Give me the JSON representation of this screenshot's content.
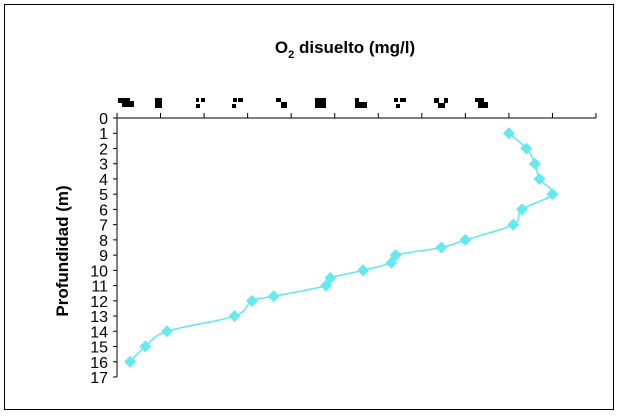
{
  "chart_data": {
    "type": "line",
    "title": "O2 disuelto (mg/l)",
    "title_parts": {
      "main": "O",
      "subscript": "2",
      "rest": " disuelto (mg/l)"
    },
    "ylabel": "Profundidad (m)",
    "xlabel": "",
    "x_axis_position": "top",
    "x_tick_labels_legible": false,
    "y_inverted": true,
    "ylim": [
      0,
      17
    ],
    "y_ticks": [
      "0",
      "1",
      "2",
      "3",
      "4",
      "5",
      "6",
      "7",
      "8",
      "9",
      "10",
      "11",
      "12",
      "13",
      "14",
      "15",
      "16",
      "17"
    ],
    "xlim": [
      0,
      11
    ],
    "grid": false,
    "legend": "none",
    "marker": "diamond",
    "color": "#66E8F0",
    "series": [
      {
        "points": [
          {
            "x": 9.0,
            "y": 1
          },
          {
            "x": 9.4,
            "y": 2
          },
          {
            "x": 9.6,
            "y": 3
          },
          {
            "x": 9.7,
            "y": 4
          },
          {
            "x": 10.0,
            "y": 5
          },
          {
            "x": 9.3,
            "y": 6
          },
          {
            "x": 9.1,
            "y": 7
          },
          {
            "x": 8.0,
            "y": 8
          },
          {
            "x": 7.45,
            "y": 8.5
          },
          {
            "x": 6.4,
            "y": 9
          },
          {
            "x": 6.3,
            "y": 9.5
          },
          {
            "x": 5.65,
            "y": 10
          },
          {
            "x": 4.9,
            "y": 10.5
          },
          {
            "x": 4.8,
            "y": 11
          },
          {
            "x": 3.6,
            "y": 11.7
          },
          {
            "x": 3.1,
            "y": 12
          },
          {
            "x": 2.7,
            "y": 13
          },
          {
            "x": 1.15,
            "y": 14
          },
          {
            "x": 0.65,
            "y": 15
          },
          {
            "x": 0.3,
            "y": 16
          }
        ]
      }
    ]
  }
}
